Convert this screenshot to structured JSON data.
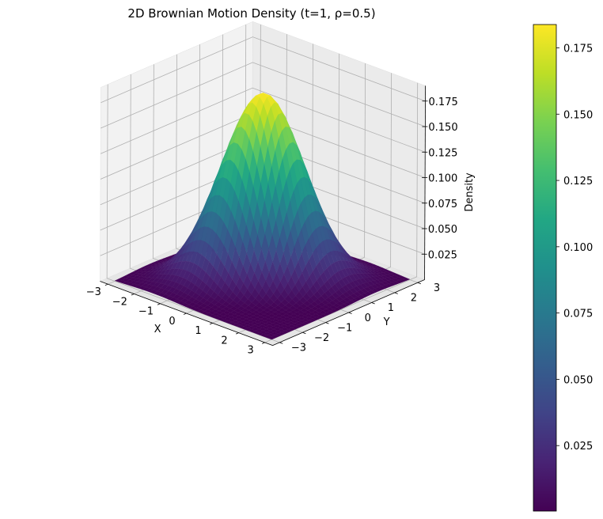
{
  "chart_data": {
    "type": "surface3d",
    "title": "2D Brownian Motion Density (t=1, ρ=0.5)",
    "xlabel": "X",
    "ylabel": "Y",
    "zlabel": "Density",
    "xlim": [
      -3.3,
      3.3
    ],
    "ylim": [
      -3.3,
      3.3
    ],
    "zlim": [
      0,
      0.19
    ],
    "x_ticks": [
      -3,
      -2,
      -1,
      0,
      1,
      2,
      3
    ],
    "y_ticks": [
      -3,
      -2,
      -1,
      0,
      1,
      2,
      3
    ],
    "z_ticks": [
      0.025,
      0.05,
      0.075,
      0.1,
      0.125,
      0.15,
      0.175
    ],
    "z_tick_labels": [
      "0.025",
      "0.050",
      "0.075",
      "0.100",
      "0.125",
      "0.150",
      "0.175"
    ],
    "x_tick_labels": [
      "−3",
      "−2",
      "−1",
      "0",
      "1",
      "2",
      "3"
    ],
    "y_tick_labels": [
      "−3",
      "−2",
      "−1",
      "0",
      "1",
      "2",
      "3"
    ],
    "surface": {
      "function": "bivariate normal density",
      "t": 1,
      "rho": 0.5,
      "x_range": [
        -3,
        3
      ],
      "y_range": [
        -3,
        3
      ],
      "peak_density": 0.1838
    },
    "colormap": "viridis",
    "colorbar": {
      "range": [
        0.0003,
        0.1838
      ],
      "ticks": [
        0.025,
        0.05,
        0.075,
        0.1,
        0.125,
        0.15,
        0.175
      ],
      "tick_labels": [
        "0.025",
        "0.050",
        "0.075",
        "0.100",
        "0.125",
        "0.150",
        "0.175"
      ]
    },
    "grid": true
  }
}
